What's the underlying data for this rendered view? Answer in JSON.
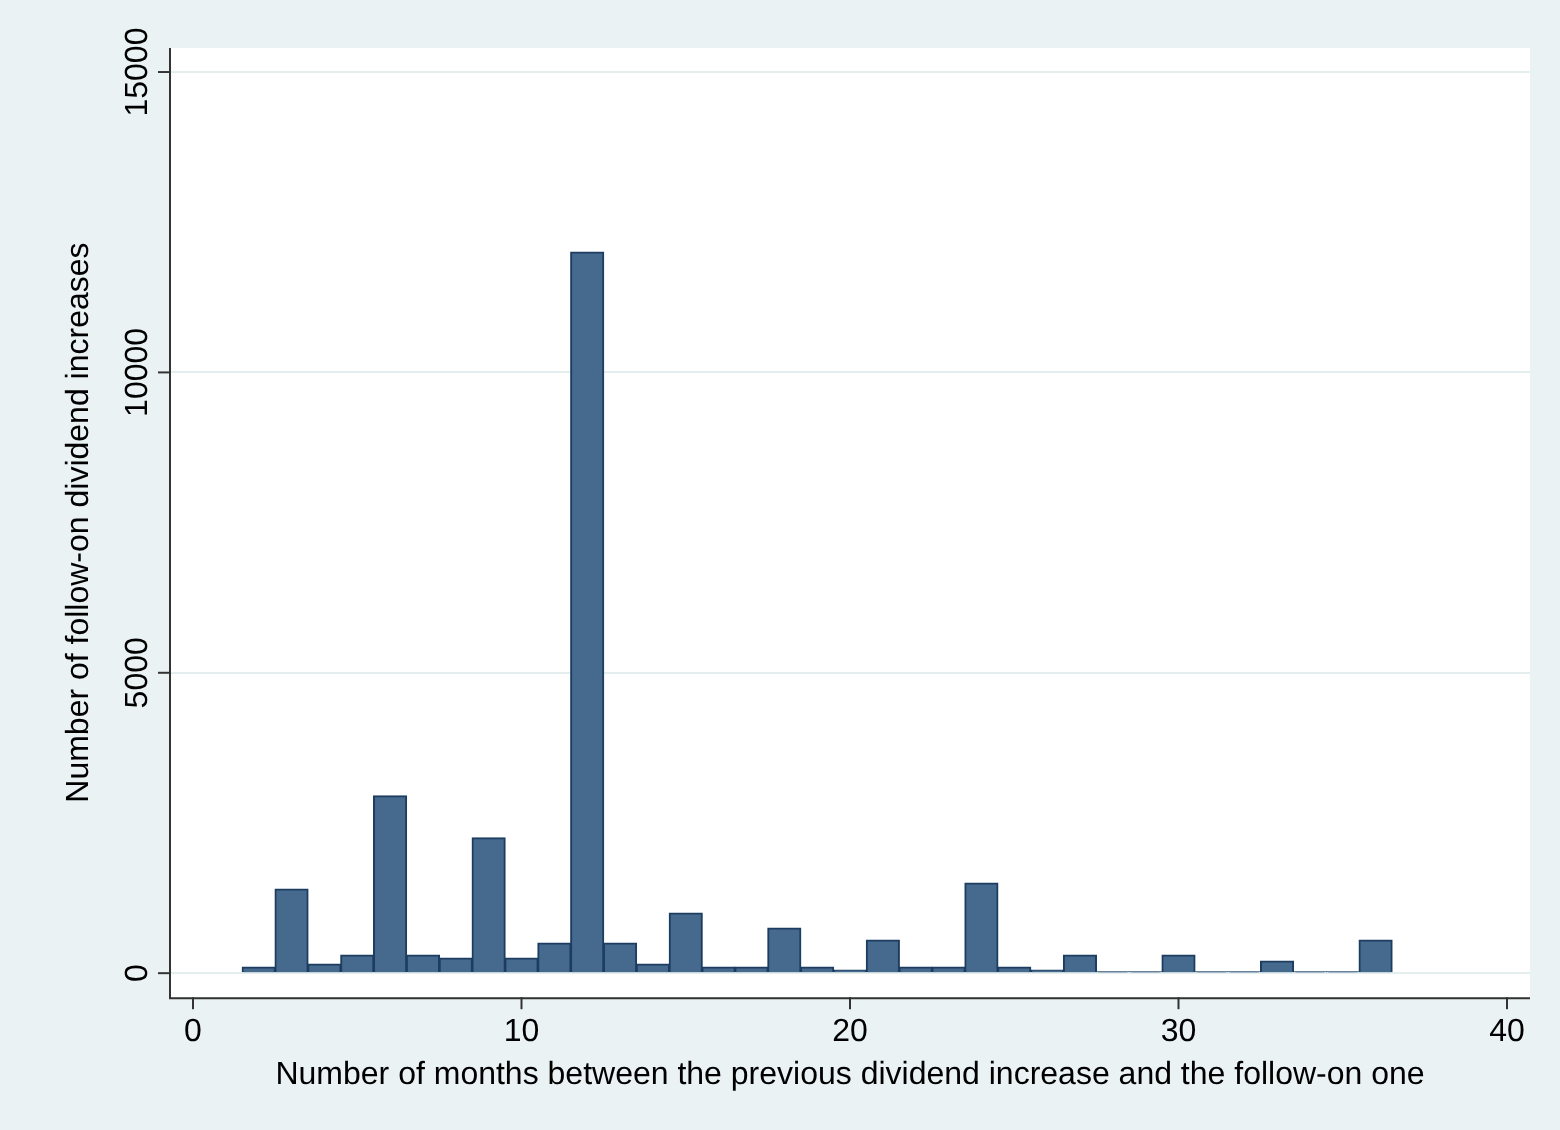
{
  "chart_data": {
    "type": "histogram",
    "xlabel": "Number of months between the previous dividend increase and the follow-on one",
    "ylabel": "Number of follow-on dividend increases",
    "bins": [
      1.5,
      2.5,
      3.5,
      4.5,
      5.5,
      6.5,
      7.5,
      8.5,
      9.5,
      10.5,
      11.5,
      12.5,
      13.5,
      14.5,
      15.5,
      16.5,
      17.5,
      18.5,
      19.5,
      20.5,
      21.5,
      22.5,
      23.5,
      24.5,
      25.5,
      26.5,
      27.5,
      28.5,
      29.5,
      30.5,
      31.5,
      32.5,
      33.5,
      34.5,
      35.5,
      36.5
    ],
    "values": [
      100,
      1400,
      150,
      300,
      2950,
      300,
      250,
      2250,
      250,
      500,
      12000,
      500,
      150,
      1000,
      100,
      100,
      750,
      100,
      50,
      550,
      100,
      100,
      1500,
      100,
      50,
      300,
      20,
      20,
      300,
      20,
      20,
      200,
      20,
      20,
      550
    ],
    "color": "#466a8e",
    "xlim": [
      -0.7,
      40.7
    ],
    "xticks": [
      0,
      10,
      20,
      30,
      40
    ],
    "ylim": [
      -400,
      15400
    ],
    "yticks": [
      0,
      5000,
      10000,
      15000
    ],
    "grid": "y"
  }
}
